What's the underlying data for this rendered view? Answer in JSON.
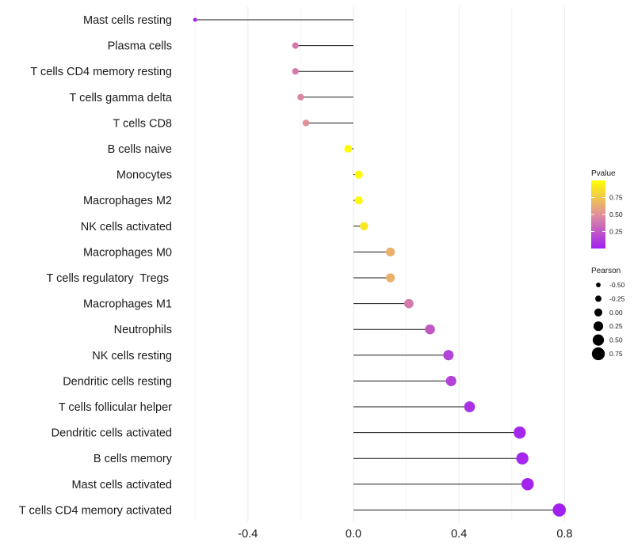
{
  "chart_data": {
    "type": "lollipop",
    "title": "",
    "xlabel": "",
    "ylabel": "",
    "xlim": [
      -0.61,
      0.81
    ],
    "xticks": [
      -0.4,
      0.0,
      0.4,
      0.8
    ],
    "xtick_labels": [
      "-0.4",
      "0.0",
      "0.4",
      "0.8"
    ],
    "grid": true,
    "categories": [
      "Mast cells resting",
      "Plasma cells",
      "T cells CD4 memory resting",
      "T cells gamma delta",
      "T cells CD8",
      "B cells naive",
      "Monocytes",
      "Macrophages M2",
      "NK cells activated",
      "Macrophages M0",
      "T cells regulatory  Tregs ",
      "Macrophages M1",
      "Neutrophils",
      "NK cells resting",
      "Dendritic cells resting",
      "T cells follicular helper",
      "Dendritic cells activated",
      "B cells memory",
      "Mast cells activated",
      "T cells CD4 memory activated"
    ],
    "pearson": [
      -0.6,
      -0.22,
      -0.22,
      -0.2,
      -0.18,
      -0.02,
      0.02,
      0.02,
      0.04,
      0.14,
      0.14,
      0.21,
      0.29,
      0.36,
      0.37,
      0.44,
      0.63,
      0.64,
      0.66,
      0.78
    ],
    "pvalue": [
      0.02,
      0.4,
      0.4,
      0.45,
      0.5,
      0.98,
      0.98,
      0.98,
      0.9,
      0.65,
      0.65,
      0.4,
      0.25,
      0.15,
      0.15,
      0.08,
      0.03,
      0.03,
      0.02,
      0.01
    ],
    "legend_color": {
      "title": "Pvalue",
      "ticks": [
        0.75,
        0.5,
        0.25
      ],
      "tick_labels": [
        "0.75",
        "0.50",
        "0.25"
      ],
      "range": [
        0.0,
        1.0
      ],
      "colors": [
        "#a020f0",
        "#e0909a",
        "#ffff00"
      ]
    },
    "legend_size": {
      "title": "Pearson",
      "values": [
        -0.5,
        -0.25,
        0.0,
        0.25,
        0.5,
        0.75
      ],
      "labels": [
        "-0.50",
        "-0.25",
        "0.00",
        "0.25",
        "0.50",
        "0.75"
      ]
    }
  }
}
